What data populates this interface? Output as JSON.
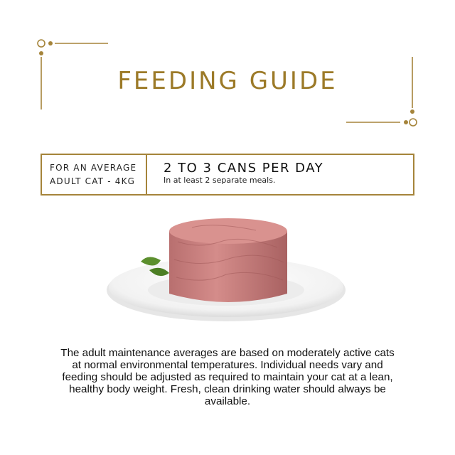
{
  "title": "FEEDING GUIDE",
  "accent_color": "#9c7a28",
  "guide": {
    "audience_line1": "FOR AN AVERAGE",
    "audience_line2": "ADULT CAT - 4KG",
    "serving": "2 TO 3 CANS PER DAY",
    "meals": "In at least 2 separate meals."
  },
  "image": {
    "subject": "wet cat food on white plate with basil leaf"
  },
  "description": "The adult maintenance averages are based on moderately active cats at normal environmental temperatures. Individual needs vary and feeding should be adjusted as required to maintain your cat at a lean, healthy body weight. Fresh, clean drinking water should always be available."
}
